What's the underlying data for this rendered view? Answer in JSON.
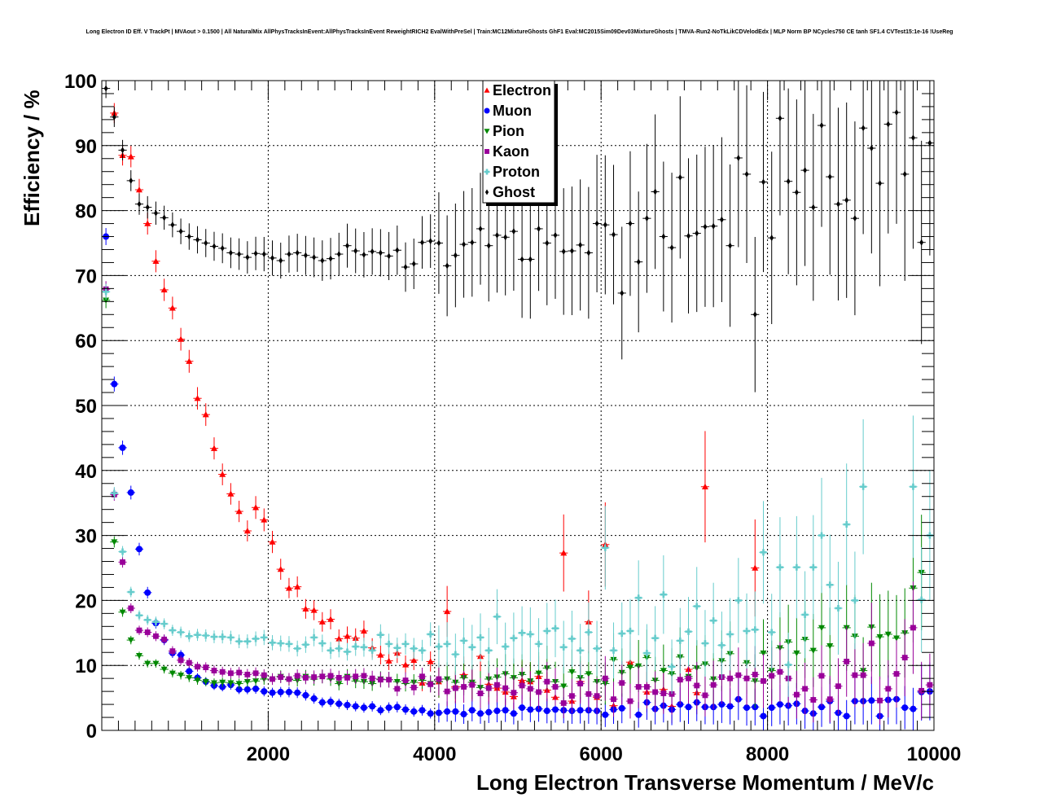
{
  "chart_data": {
    "type": "scatter",
    "title": "Long Electron ID Eff. V TrackPt | MVAout > 0.1500 | All NaturalMix AllPhysTracksInEvent:AllPhysTracksInEvent ReweightRICH2 EvalWithPreSel | Train:MC12MixtureGhosts GhF1 Eval:MC2015Sim09Dev03MixtureGhosts | TMVA-Run2-NoTkLikCDVelodEdx | MLP Norm BP NCycles750 CE tanh SF1.4 CVTest15:1e-16 !UseReg",
    "xlabel": "Long Electron Transverse Momentum / MeV/c",
    "ylabel": "Efficiency / %",
    "xlim": [
      0,
      10000
    ],
    "ylim": [
      0,
      100
    ],
    "grid": true,
    "legend_position": "top-center",
    "x_ticks": [
      2000,
      4000,
      6000,
      8000,
      10000
    ],
    "y_ticks": [
      0,
      10,
      20,
      30,
      40,
      50,
      60,
      70,
      80,
      90,
      100
    ],
    "bin_width": 100,
    "series": [
      {
        "name": "Electron",
        "color": "#ff0000",
        "marker": "triangle-up",
        "y": [
          null,
          95.0,
          88.5,
          88.3,
          83.2,
          78.0,
          72.2,
          67.8,
          65.0,
          60.2,
          56.8,
          51.1,
          48.6,
          43.4,
          39.4,
          36.4,
          33.7,
          30.7,
          34.3,
          32.4,
          29.0,
          24.8,
          21.9,
          22.1,
          18.7,
          18.5,
          16.7,
          17.1,
          14.1,
          14.5,
          14.2,
          15.3,
          12.7,
          11.6,
          10.7,
          11.9,
          10.1,
          10.8,
          7.3,
          10.6,
          7.5,
          18.3,
          6.7,
          8.6,
          7.4,
          11.4,
          7.1,
          6.5,
          5.9,
          5.2,
          7.7,
          7.5,
          8.3,
          6.2,
          5.1,
          27.3,
          4.5,
          7.5,
          16.7,
          5.1,
          28.6,
          3.8,
          null,
          10.5,
          null,
          5.9,
          null,
          6.3,
          3.7,
          null,
          9.4,
          5.8,
          37.5,
          null,
          null,
          null,
          null,
          null,
          25.0,
          null,
          null,
          null,
          null,
          null,
          null,
          null,
          null,
          null,
          null,
          null,
          null,
          null,
          null,
          null,
          null,
          null,
          null,
          null,
          null,
          null
        ]
      },
      {
        "name": "Muon",
        "color": "#0000ff",
        "marker": "circle",
        "y": [
          76.0,
          53.3,
          43.5,
          36.6,
          27.9,
          21.2,
          16.5,
          13.9,
          11.9,
          11.6,
          9.1,
          8.1,
          7.5,
          6.9,
          6.7,
          7.0,
          6.3,
          6.3,
          6.4,
          6.0,
          5.8,
          5.9,
          5.9,
          5.8,
          5.4,
          4.9,
          4.3,
          4.4,
          4.1,
          3.9,
          3.7,
          3.5,
          3.7,
          3.1,
          3.5,
          3.6,
          3.2,
          2.9,
          3.1,
          2.6,
          2.7,
          2.9,
          2.9,
          2.5,
          3.1,
          2.6,
          2.8,
          3.0,
          3.1,
          2.6,
          3.5,
          3.2,
          3.3,
          3.0,
          3.2,
          3.1,
          3.0,
          3.1,
          3.1,
          3.0,
          2.4,
          3.2,
          3.4,
          null,
          2.4,
          4.3,
          3.3,
          3.8,
          3.2,
          4.0,
          3.6,
          4.3,
          3.6,
          3.6,
          4.0,
          3.7,
          4.8,
          3.5,
          3.6,
          2.2,
          3.5,
          4.0,
          3.8,
          4.1,
          3.0,
          2.6,
          3.6,
          4.5,
          2.7,
          2.2,
          4.5,
          4.5,
          4.6,
          2.2,
          4.7,
          4.8,
          3.5,
          3.3,
          5.9,
          6.0
        ]
      },
      {
        "name": "Pion",
        "color": "#008800",
        "marker": "triangle-down",
        "y": [
          66.2,
          29.0,
          18.2,
          13.9,
          11.5,
          10.3,
          10.3,
          9.4,
          8.8,
          8.5,
          8.1,
          7.7,
          7.5,
          7.3,
          7.4,
          7.3,
          7.2,
          7.5,
          7.6,
          7.9,
          7.9,
          8.3,
          7.8,
          7.7,
          8.3,
          7.9,
          8.3,
          7.9,
          7.2,
          8.3,
          7.6,
          7.5,
          7.2,
          7.9,
          7.8,
          7.5,
          7.2,
          7.4,
          7.7,
          7.2,
          7.5,
          7.9,
          7.4,
          8.1,
          7.4,
          6.6,
          7.9,
          8.2,
          8.7,
          8.1,
          8.6,
          7.6,
          8.8,
          9.6,
          7.5,
          6.8,
          9.0,
          8.1,
          8.7,
          7.5,
          7.2,
          10.9,
          8.9,
          9.7,
          9.9,
          11.2,
          7.7,
          9.2,
          8.7,
          11.3,
          8.3,
          9.6,
          10.2,
          7.9,
          10.7,
          11.8,
          null,
          10.4,
          7.6,
          11.9,
          9.2,
          12.7,
          13.6,
          11.9,
          14.0,
          12.3,
          15.8,
          13.0,
          null,
          15.8,
          14.5,
          9.2,
          15.9,
          14.4,
          14.8,
          14.2,
          15.0,
          21.9,
          24.3,
          null
        ]
      },
      {
        "name": "Kaon",
        "color": "#990099",
        "marker": "square",
        "y": [
          67.9,
          36.3,
          25.9,
          18.8,
          15.4,
          15.1,
          14.5,
          14.0,
          12.2,
          10.8,
          10.4,
          9.8,
          9.7,
          9.2,
          9.0,
          8.8,
          8.9,
          8.6,
          8.8,
          8.5,
          7.9,
          8.2,
          7.9,
          8.4,
          8.1,
          8.2,
          8.3,
          8.4,
          8.1,
          8.1,
          8.3,
          8.4,
          8.0,
          7.8,
          7.8,
          6.4,
          7.7,
          6.6,
          8.3,
          7.1,
          7.9,
          6.0,
          6.5,
          6.7,
          7.0,
          5.7,
          6.5,
          7.0,
          6.5,
          5.8,
          6.9,
          6.4,
          5.9,
          7.5,
          6.7,
          4.2,
          5.3,
          7.2,
          5.6,
          5.3,
          8.0,
          4.8,
          7.3,
          4.5,
          6.7,
          6.7,
          5.9,
          5.7,
          5.6,
          7.8,
          8.0,
          6.9,
          5.4,
          7.0,
          8.2,
          8.0,
          8.5,
          8.0,
          8.6,
          7.6,
          8.4,
          9.0,
          8.0,
          5.5,
          6.4,
          4.7,
          8.4,
          4.8,
          6.8,
          10.6,
          8.5,
          8.5,
          13.4,
          4.6,
          6.4,
          8.7,
          11.2,
          15.8,
          6.1,
          7.0
        ]
      },
      {
        "name": "Proton",
        "color": "#66cccc",
        "marker": "cross",
        "y": [
          67.5,
          36.5,
          27.5,
          21.3,
          17.7,
          17.0,
          16.7,
          16.4,
          15.4,
          15.1,
          14.5,
          14.7,
          14.6,
          14.4,
          14.4,
          14.3,
          13.7,
          13.7,
          14.1,
          14.3,
          13.5,
          13.4,
          13.3,
          12.6,
          13.2,
          14.3,
          13.4,
          12.3,
          12.6,
          12.1,
          12.9,
          12.8,
          12.3,
          14.7,
          13.3,
          12.7,
          13.3,
          12.6,
          12.3,
          14.8,
          12.9,
          13.3,
          11.7,
          13.8,
          12.8,
          14.3,
          12.3,
          17.5,
          12.9,
          14.2,
          15.0,
          14.8,
          13.3,
          15.3,
          15.7,
          12.8,
          14.1,
          12.3,
          15.1,
          12.6,
          28.1,
          12.3,
          14.9,
          15.3,
          20.4,
          11.9,
          14.2,
          20.9,
          9.8,
          13.8,
          15.2,
          19.1,
          13.4,
          16.9,
          13.1,
          14.8,
          20.0,
          15.3,
          15.5,
          27.4,
          15.1,
          25.1,
          10.1,
          25.1,
          17.8,
          25.1,
          30.0,
          22.4,
          18.8,
          31.7,
          20.0,
          37.5,
          null,
          null,
          null,
          null,
          null,
          37.5,
          20.1,
          30.0
        ]
      },
      {
        "name": "Ghost",
        "color": "#000000",
        "marker": "diamond",
        "y": [
          98.8,
          94.4,
          89.3,
          84.6,
          81.0,
          80.5,
          79.6,
          78.9,
          77.8,
          76.8,
          76.0,
          75.5,
          75.0,
          74.5,
          74.2,
          73.5,
          73.3,
          72.8,
          73.4,
          73.3,
          72.7,
          72.3,
          73.3,
          73.5,
          73.1,
          72.8,
          72.3,
          72.6,
          73.3,
          74.6,
          73.8,
          73.2,
          73.7,
          73.5,
          73.0,
          73.9,
          71.3,
          71.8,
          75.1,
          75.3,
          75.0,
          71.5,
          73.1,
          74.8,
          75.1,
          77.2,
          74.6,
          76.2,
          75.9,
          76.8,
          72.5,
          72.5,
          77.2,
          75.0,
          76.2,
          73.7,
          73.8,
          74.7,
          73.5,
          78.0,
          77.8,
          76.3,
          67.3,
          78.0,
          72.1,
          78.8,
          82.9,
          76.0,
          74.3,
          85.1,
          76.1,
          76.5,
          77.5,
          77.6,
          78.6,
          74.6,
          88.1,
          85.6,
          64.0,
          84.4,
          75.8,
          94.2,
          84.5,
          82.8,
          86.2,
          80.5,
          93.1,
          85.2,
          81.0,
          81.6,
          78.8,
          92.7,
          89.6,
          84.2,
          93.3,
          95.1,
          85.6,
          91.2,
          75.1,
          90.4
        ]
      }
    ]
  }
}
